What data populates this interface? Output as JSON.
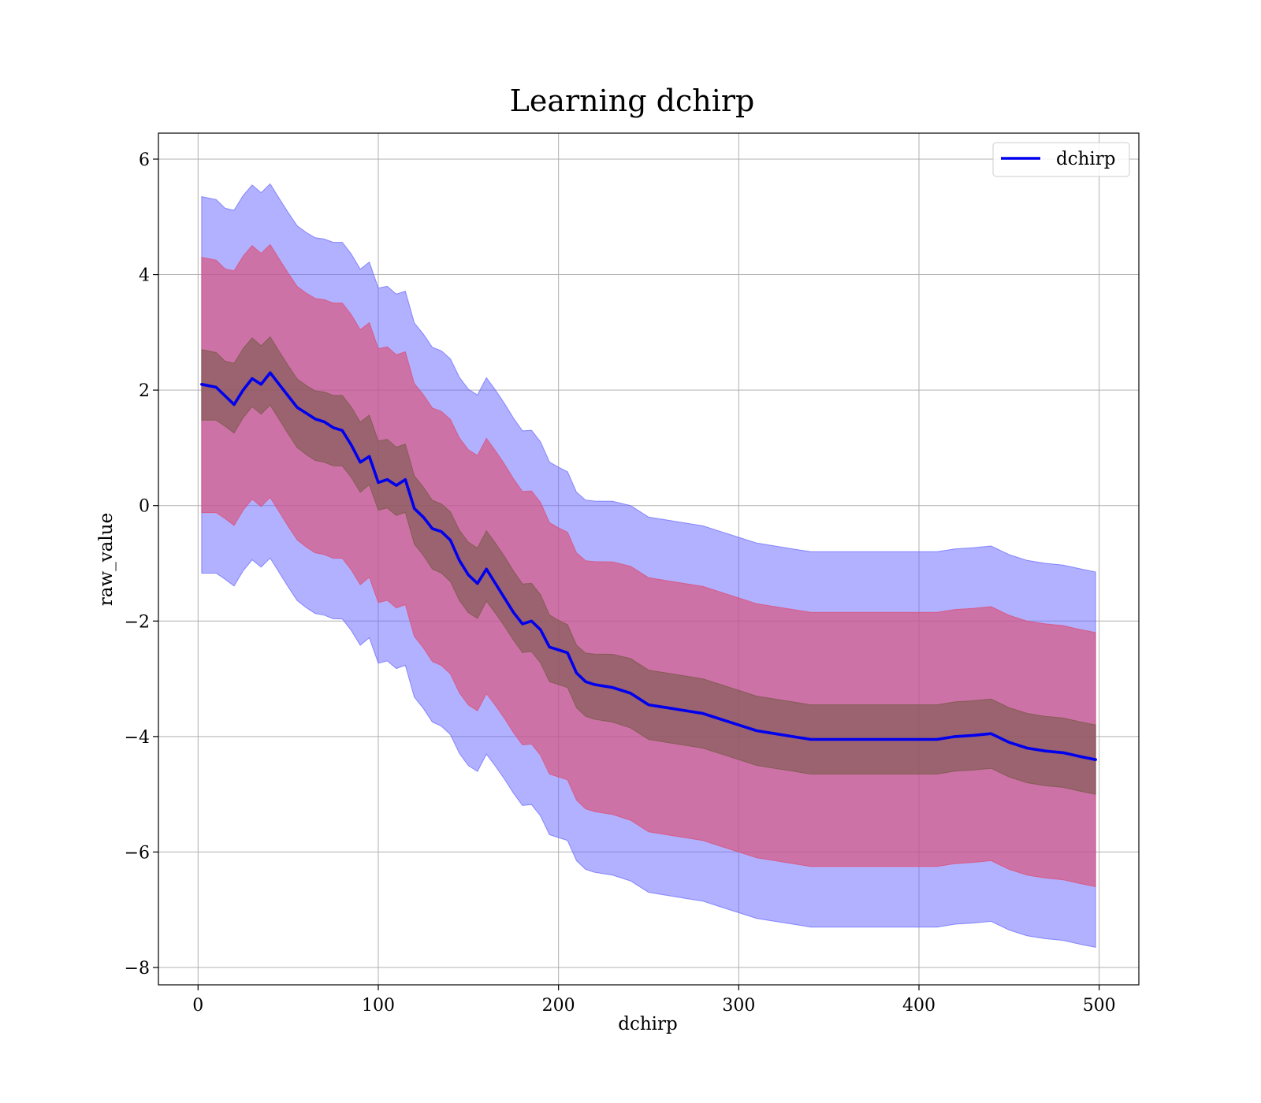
{
  "chart_data": {
    "type": "line",
    "title": "Learning dchirp",
    "xlabel": "dchirp",
    "ylabel": "raw_value",
    "xlim": [
      -22,
      522
    ],
    "ylim": [
      -8.3,
      6.45
    ],
    "xticks": [
      0,
      100,
      200,
      300,
      400,
      500
    ],
    "yticks": [
      -8,
      -6,
      -4,
      -2,
      0,
      2,
      4,
      6
    ],
    "xtick_labels": [
      "0",
      "100",
      "200",
      "300",
      "400",
      "500"
    ],
    "ytick_labels": [
      "−8",
      "−6",
      "−4",
      "−2",
      "0",
      "2",
      "4",
      "6"
    ],
    "grid": true,
    "legend": {
      "position": "top-right",
      "entries": [
        "dchirp"
      ]
    },
    "colors": {
      "line": "#0000ee",
      "outer_band": "#6464ff",
      "middle_band": "#dc5078",
      "inner_band": "#7a5a4a",
      "grid": "#b0b0b0"
    },
    "series": [
      {
        "name": "dchirp",
        "x": [
          2,
          10,
          15,
          20,
          25,
          30,
          35,
          40,
          45,
          50,
          55,
          60,
          65,
          70,
          75,
          80,
          85,
          90,
          95,
          100,
          105,
          110,
          115,
          120,
          125,
          130,
          135,
          140,
          145,
          150,
          155,
          160,
          165,
          170,
          175,
          180,
          185,
          190,
          195,
          200,
          205,
          210,
          215,
          220,
          230,
          240,
          250,
          260,
          270,
          280,
          290,
          300,
          310,
          320,
          330,
          340,
          350,
          360,
          370,
          380,
          390,
          400,
          410,
          420,
          430,
          440,
          450,
          460,
          470,
          480,
          490,
          498
        ],
        "values": [
          2.1,
          2.05,
          1.9,
          1.75,
          2.0,
          2.2,
          2.1,
          2.3,
          2.1,
          1.9,
          1.7,
          1.6,
          1.5,
          1.45,
          1.35,
          1.3,
          1.05,
          0.75,
          0.85,
          0.4,
          0.45,
          0.35,
          0.45,
          -0.05,
          -0.2,
          -0.4,
          -0.45,
          -0.6,
          -0.95,
          -1.2,
          -1.35,
          -1.1,
          -1.35,
          -1.6,
          -1.85,
          -2.05,
          -2.0,
          -2.15,
          -2.45,
          -2.5,
          -2.55,
          -2.9,
          -3.05,
          -3.1,
          -3.15,
          -3.25,
          -3.45,
          -3.5,
          -3.55,
          -3.6,
          -3.7,
          -3.8,
          -3.9,
          -3.95,
          -4.0,
          -4.05,
          -4.05,
          -4.05,
          -4.05,
          -4.05,
          -4.05,
          -4.05,
          -4.05,
          -4.0,
          -3.98,
          -3.95,
          -4.1,
          -4.2,
          -4.25,
          -4.28,
          -4.35,
          -4.4
        ],
        "bands": [
          {
            "name": "inner",
            "offset": 0.6
          },
          {
            "name": "middle",
            "offset": 2.2
          },
          {
            "name": "outer",
            "offset": 3.25
          }
        ]
      }
    ]
  }
}
